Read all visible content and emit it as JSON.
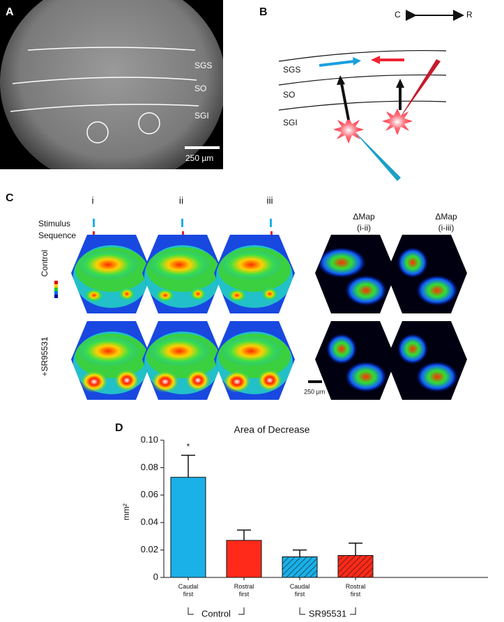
{
  "panel_a": {
    "label": "A",
    "layers": [
      "SGS",
      "SO",
      "SGI"
    ],
    "scale_bar": "250 µm"
  },
  "panel_b": {
    "label": "B",
    "direction": [
      "C",
      "R"
    ],
    "layers": [
      "SGS",
      "SO",
      "SGI"
    ]
  },
  "panel_c": {
    "label": "C",
    "sequence_label": [
      "Stimulus",
      "Sequence"
    ],
    "columns": [
      {
        "title": "i"
      },
      {
        "title": "ii"
      },
      {
        "title": "iii"
      },
      {
        "title": "ΔMap",
        "subtitle": "(i-ii)"
      },
      {
        "title": "ΔMap",
        "subtitle": "(i-iii)"
      }
    ],
    "rows": [
      "Control",
      "+SR95531"
    ],
    "scale_bar": "250 µm"
  },
  "panel_d": {
    "label": "D"
  },
  "chart_data": {
    "type": "bar",
    "title": "Area of Decrease",
    "y_label": "mm²",
    "categories": [
      "Caudal first",
      "Rostral first",
      "Caudal first",
      "Rostral first"
    ],
    "values": [
      0.073,
      0.027,
      0.015,
      0.016
    ],
    "errors": [
      0.016,
      0.0075,
      0.005,
      0.009
    ],
    "colors": [
      "#1ab0e8",
      "#ff2a1a",
      "#1ab0e8",
      "#ff2a1a"
    ],
    "hatched": [
      false,
      false,
      true,
      true
    ],
    "groups": [
      {
        "name": "Control",
        "members": [
          0,
          1
        ]
      },
      {
        "name": "SR95531",
        "members": [
          2,
          3
        ]
      }
    ],
    "annotations": [
      {
        "text": "*",
        "category": 0
      }
    ],
    "ylim": [
      0,
      0.1
    ],
    "yticks": [
      0,
      0.02,
      0.04,
      0.06,
      0.08,
      {
        "value": 0.1,
        "label": "0.10"
      }
    ]
  }
}
